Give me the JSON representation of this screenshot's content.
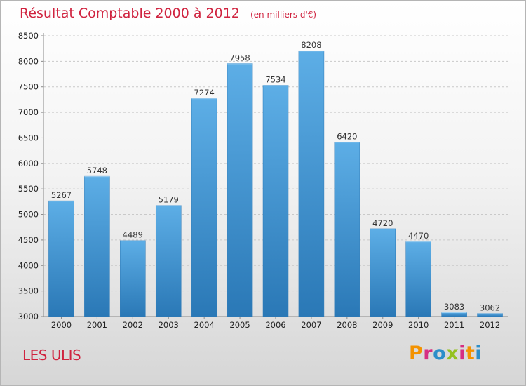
{
  "header": {
    "title": "Résultat Comptable 2000 à 2012",
    "subtitle": "(en milliers d'€)"
  },
  "footer": {
    "commune": "LES ULIS",
    "logo_text": "Proxiti"
  },
  "colors": {
    "title": "#d0233f",
    "bar_top": "#5daee6",
    "bar_bottom": "#2a78b6",
    "logo_letters": [
      "#f39200",
      "#d62e82",
      "#2c8fc9",
      "#94c11f",
      "#d62e82",
      "#f39200",
      "#2c8fc9"
    ]
  },
  "chart_data": {
    "type": "bar",
    "title": "Résultat Comptable 2000 à 2012",
    "subtitle": "(en milliers d'€)",
    "xlabel": "",
    "ylabel": "",
    "categories": [
      "2000",
      "2001",
      "2002",
      "2003",
      "2004",
      "2005",
      "2006",
      "2007",
      "2008",
      "2009",
      "2010",
      "2011",
      "2012"
    ],
    "values": [
      5267,
      5748,
      4489,
      5179,
      7274,
      7958,
      7534,
      8208,
      6420,
      4720,
      4470,
      3083,
      3062
    ],
    "ylim": [
      3000,
      8500
    ],
    "yticks": [
      3000,
      3500,
      4000,
      4500,
      5000,
      5500,
      6000,
      6500,
      7000,
      7500,
      8000,
      8500
    ],
    "grid": "horizontal-dashed",
    "legend": "none"
  }
}
